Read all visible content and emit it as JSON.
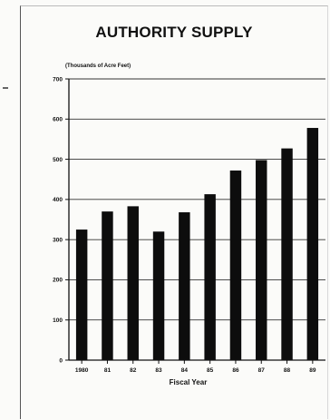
{
  "chart_data": {
    "type": "bar",
    "title": "AUTHORITY SUPPLY",
    "ylabel": "(Thousands of Acre Feet)",
    "xlabel": "Fiscal Year",
    "categories": [
      "1980",
      "81",
      "82",
      "83",
      "84",
      "85",
      "86",
      "87",
      "88",
      "89"
    ],
    "values": [
      325,
      370,
      383,
      320,
      368,
      413,
      472,
      498,
      527,
      578
    ],
    "ylim": [
      0,
      700
    ],
    "yticks": [
      0,
      100,
      200,
      300,
      400,
      500,
      600,
      700
    ],
    "grid": true,
    "colors": {
      "bar": "#0d0d0d",
      "grid": "#333333"
    }
  }
}
